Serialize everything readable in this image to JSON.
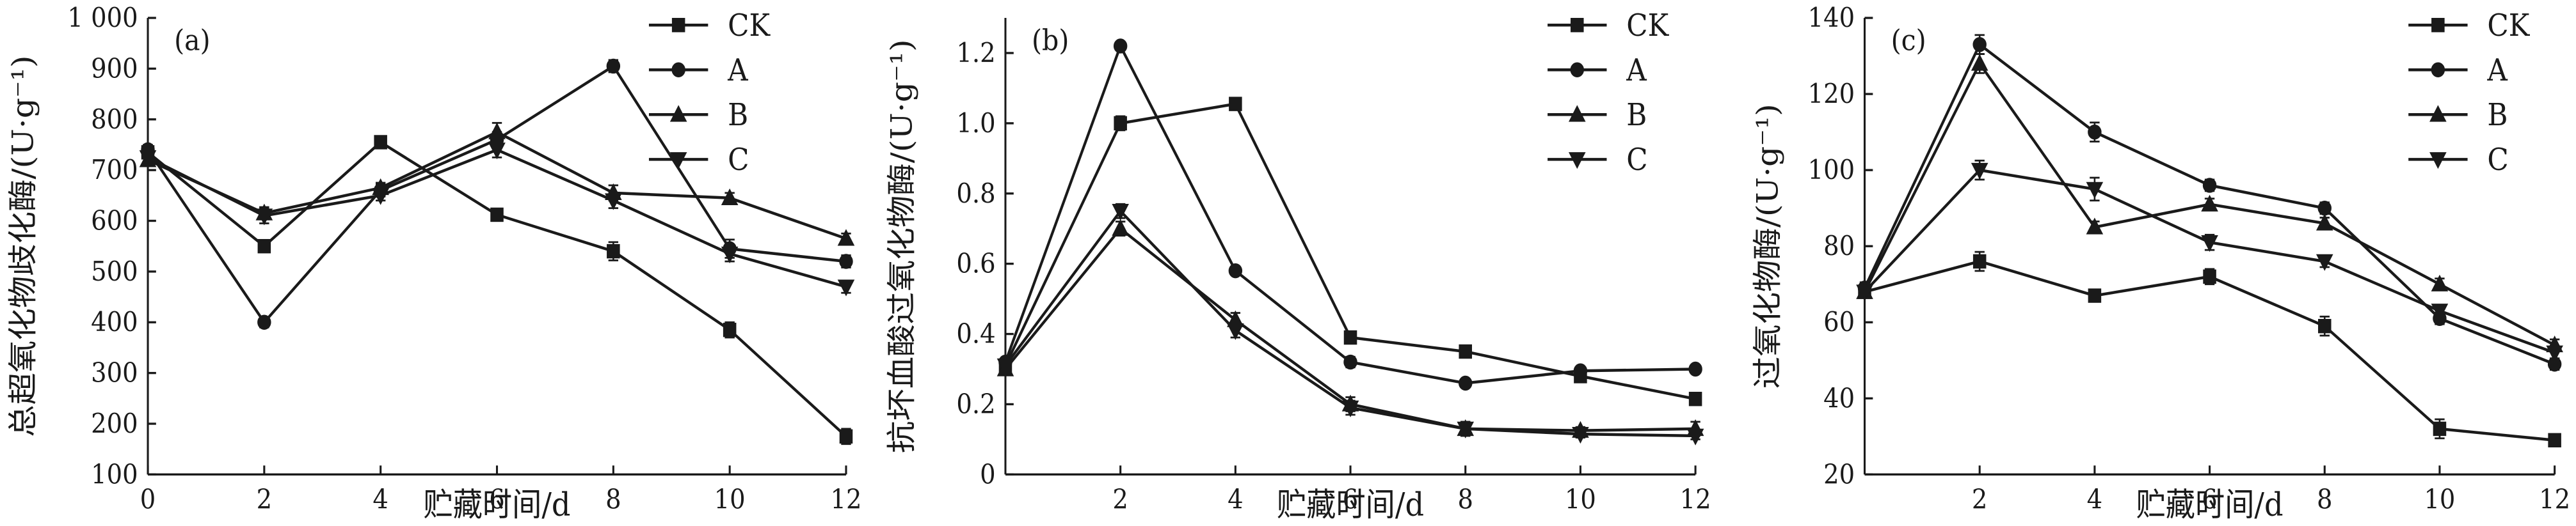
{
  "chart_data": [
    {
      "type": "line",
      "panel_tag": "(a)",
      "ylabel": "总超氧化物歧化酶/(U·g⁻¹)",
      "xlabel": "贮藏时间/d",
      "ylim": [
        100,
        1000
      ],
      "yticks": [
        100,
        200,
        300,
        400,
        500,
        600,
        700,
        800,
        900,
        1000
      ],
      "ytick_labels": [
        "100",
        "200",
        "300",
        "400",
        "500",
        "600",
        "700",
        "800",
        "900",
        "1 000"
      ],
      "xlim": [
        0,
        12
      ],
      "xticks": [
        0,
        2,
        4,
        6,
        8,
        10,
        12
      ],
      "xtick_labels": [
        "0",
        "2",
        "4",
        "6",
        "8",
        "10",
        "12"
      ],
      "legend_position": "top-right",
      "x": [
        0,
        2,
        4,
        6,
        8,
        10,
        12
      ],
      "series": [
        {
          "name": "CK",
          "marker": "square",
          "values": [
            735,
            550,
            755,
            612,
            540,
            385,
            175
          ],
          "errors": [
            10,
            12,
            8,
            10,
            18,
            15,
            15
          ]
        },
        {
          "name": "A",
          "marker": "circle",
          "values": [
            740,
            400,
            660,
            760,
            905,
            545,
            520
          ],
          "errors": [
            10,
            10,
            12,
            15,
            12,
            18,
            12
          ]
        },
        {
          "name": "B",
          "marker": "triangle-up",
          "values": [
            720,
            615,
            665,
            775,
            655,
            645,
            565
          ],
          "errors": [
            10,
            12,
            10,
            18,
            15,
            10,
            10
          ]
        },
        {
          "name": "C",
          "marker": "triangle-down",
          "values": [
            725,
            610,
            650,
            740,
            640,
            535,
            470
          ],
          "errors": [
            10,
            15,
            10,
            15,
            15,
            15,
            12
          ]
        }
      ]
    },
    {
      "type": "line",
      "panel_tag": "(b)",
      "ylabel": "抗坏血酸过氧化物酶/(U·g⁻¹)",
      "xlabel": "贮藏时间/d",
      "ylim": [
        0,
        1.3
      ],
      "yticks": [
        0,
        0.2,
        0.4,
        0.6,
        0.8,
        1.0,
        1.2
      ],
      "ytick_labels": [
        "0",
        "0.2",
        "0.4",
        "0.6",
        "0.8",
        "1.0",
        "1.2"
      ],
      "xlim": [
        0,
        12
      ],
      "xticks": [
        2,
        4,
        6,
        8,
        10,
        12
      ],
      "xtick_labels": [
        "2",
        "4",
        "6",
        "8",
        "10",
        "12"
      ],
      "legend_position": "top-right",
      "x": [
        0,
        2,
        4,
        6,
        8,
        10,
        12
      ],
      "series": [
        {
          "name": "CK",
          "marker": "square",
          "values": [
            0.31,
            1.0,
            1.055,
            0.39,
            0.35,
            0.28,
            0.215
          ],
          "errors": [
            0.01,
            0.02,
            0.01,
            0.01,
            0.01,
            0.01,
            0.01
          ]
        },
        {
          "name": "A",
          "marker": "circle",
          "values": [
            0.32,
            1.22,
            0.58,
            0.32,
            0.26,
            0.295,
            0.3
          ],
          "errors": [
            0.01,
            0.01,
            0.01,
            0.015,
            0.01,
            0.01,
            0.01
          ]
        },
        {
          "name": "B",
          "marker": "triangle-up",
          "values": [
            0.3,
            0.7,
            0.44,
            0.2,
            0.13,
            0.125,
            0.13
          ],
          "errors": [
            0.01,
            0.02,
            0.02,
            0.02,
            0.02,
            0.01,
            0.02
          ]
        },
        {
          "name": "C",
          "marker": "triangle-down",
          "values": [
            0.31,
            0.75,
            0.41,
            0.19,
            0.13,
            0.115,
            0.11
          ],
          "errors": [
            0.01,
            0.02,
            0.02,
            0.02,
            0.02,
            0.01,
            0.01
          ]
        }
      ]
    },
    {
      "type": "line",
      "panel_tag": "(c)",
      "ylabel": "过氧化物酶/(U·g⁻¹)",
      "xlabel": "贮藏时间/d",
      "ylim": [
        20,
        140
      ],
      "yticks": [
        20,
        40,
        60,
        80,
        100,
        120,
        140
      ],
      "ytick_labels": [
        "20",
        "40",
        "60",
        "80",
        "100",
        "120",
        "140"
      ],
      "xlim": [
        0,
        12
      ],
      "xticks": [
        2,
        4,
        6,
        8,
        10,
        12
      ],
      "xtick_labels": [
        "2",
        "4",
        "6",
        "8",
        "10",
        "12"
      ],
      "legend_position": "top-right",
      "x": [
        0,
        2,
        4,
        6,
        8,
        10,
        12
      ],
      "series": [
        {
          "name": "CK",
          "marker": "square",
          "values": [
            68,
            76,
            67,
            72,
            59,
            32,
            29
          ],
          "errors": [
            1.5,
            2.5,
            1.5,
            2,
            2.5,
            2.5,
            1
          ]
        },
        {
          "name": "A",
          "marker": "circle",
          "values": [
            69,
            133,
            110,
            96,
            90,
            61,
            49
          ],
          "errors": [
            1.5,
            2.5,
            2.5,
            1.5,
            1.5,
            1.5,
            1.5
          ]
        },
        {
          "name": "B",
          "marker": "triangle-up",
          "values": [
            68,
            128,
            85,
            91,
            86,
            70,
            54
          ],
          "errors": [
            1.5,
            2.5,
            1.5,
            1.5,
            1.5,
            1.5,
            1.5
          ]
        },
        {
          "name": "C",
          "marker": "triangle-down",
          "values": [
            68,
            100,
            95,
            81,
            76,
            63,
            52
          ],
          "errors": [
            1.5,
            2.5,
            3,
            2,
            1.5,
            1.5,
            1.5
          ]
        }
      ]
    }
  ]
}
